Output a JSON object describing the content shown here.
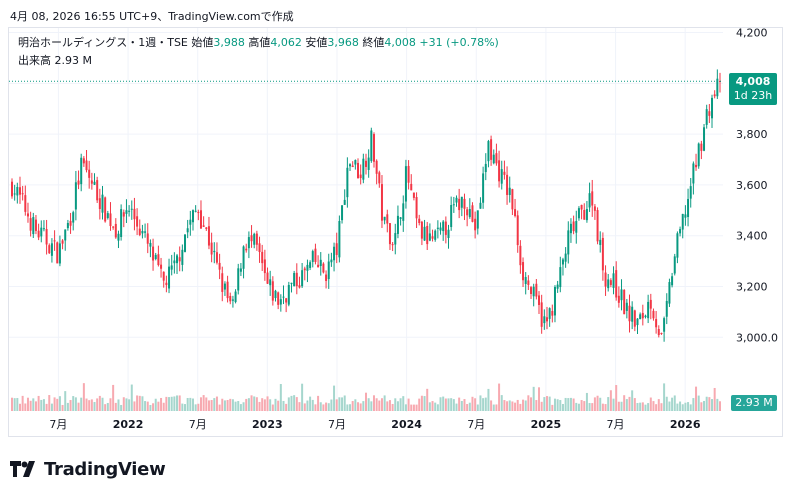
{
  "header": {
    "snapshot_text": "4月 08, 2026 16:55 UTC+9、TradingView.comで作成"
  },
  "legend": {
    "symbol": "明治ホールディングス・1週・TSE",
    "open_label": "始値",
    "open_value": "3,988",
    "high_label": "高値",
    "high_value": "4,062",
    "low_label": "安値",
    "low_value": "3,968",
    "close_label": "終値",
    "close_value": "4,008",
    "change": "+31 (+0.78%)",
    "volume_label": "出来高",
    "volume_value": "2.93 M"
  },
  "price_tag": {
    "price": "4,008",
    "countdown": "1d 23h"
  },
  "volume_tag": "2.93 M",
  "logo": {
    "text": "TradingView"
  },
  "colors": {
    "up": "#089981",
    "down": "#f23645",
    "vol_up": "#a5d6cd",
    "vol_down": "#f7a9b0",
    "grid": "#f0f3fa"
  },
  "chart_data": {
    "type": "candlestick",
    "title": "明治ホールディングス・1週・TSE",
    "x_ticks": [
      "7月",
      "2022",
      "7月",
      "2023",
      "7月",
      "2024",
      "7月",
      "2025",
      "7月",
      "2026"
    ],
    "y_ticks": [
      "4,200",
      "4,000",
      "3,800",
      "3,600",
      "3,400",
      "3,200",
      "3,000.0"
    ],
    "y_tick_values": [
      4200,
      4000,
      3800,
      3600,
      3400,
      3200,
      3000
    ],
    "ylim": [
      2820,
      4210
    ],
    "last_close": 4008,
    "start": "2021-03",
    "end": "2026-04",
    "weeks": 267,
    "anchor_series": {
      "name": "approximate weekly closes",
      "points": [
        [
          "2021-03",
          3600
        ],
        [
          "2021-04",
          3520
        ],
        [
          "2021-05",
          3420
        ],
        [
          "2021-06",
          3380
        ],
        [
          "2021-07",
          3330
        ],
        [
          "2021-08",
          3470
        ],
        [
          "2021-09",
          3680
        ],
        [
          "2021-10",
          3600
        ],
        [
          "2021-11",
          3500
        ],
        [
          "2021-12",
          3420
        ],
        [
          "2022-01",
          3520
        ],
        [
          "2022-02",
          3430
        ],
        [
          "2022-03",
          3330
        ],
        [
          "2022-04",
          3210
        ],
        [
          "2022-05",
          3270
        ],
        [
          "2022-06",
          3420
        ],
        [
          "2022-07",
          3510
        ],
        [
          "2022-08",
          3380
        ],
        [
          "2022-09",
          3220
        ],
        [
          "2022-10",
          3100
        ],
        [
          "2022-11",
          3380
        ],
        [
          "2022-12",
          3360
        ],
        [
          "2023-01",
          3200
        ],
        [
          "2023-02",
          3140
        ],
        [
          "2023-03",
          3200
        ],
        [
          "2023-04",
          3240
        ],
        [
          "2023-05",
          3300
        ],
        [
          "2023-06",
          3250
        ],
        [
          "2023-07",
          3350
        ],
        [
          "2023-08",
          3700
        ],
        [
          "2023-09",
          3650
        ],
        [
          "2023-10",
          3780
        ],
        [
          "2023-11",
          3450
        ],
        [
          "2023-12",
          3380
        ],
        [
          "2024-01",
          3650
        ],
        [
          "2024-02",
          3420
        ],
        [
          "2024-03",
          3380
        ],
        [
          "2024-04",
          3400
        ],
        [
          "2024-05",
          3500
        ],
        [
          "2024-06",
          3550
        ],
        [
          "2024-07",
          3420
        ],
        [
          "2024-08",
          3760
        ],
        [
          "2024-09",
          3650
        ],
        [
          "2024-10",
          3550
        ],
        [
          "2024-11",
          3260
        ],
        [
          "2024-12",
          3150
        ],
        [
          "2025-01",
          3040
        ],
        [
          "2025-02",
          3200
        ],
        [
          "2025-03",
          3400
        ],
        [
          "2025-04",
          3480
        ],
        [
          "2025-05",
          3560
        ],
        [
          "2025-06",
          3250
        ],
        [
          "2025-07",
          3200
        ],
        [
          "2025-08",
          3100
        ],
        [
          "2025-09",
          3050
        ],
        [
          "2025-10",
          3150
        ],
        [
          "2025-11",
          2980
        ],
        [
          "2025-12",
          3300
        ],
        [
          "2026-01",
          3500
        ],
        [
          "2026-02",
          3700
        ],
        [
          "2026-03",
          3900
        ],
        [
          "2026-04",
          4008
        ]
      ]
    }
  }
}
